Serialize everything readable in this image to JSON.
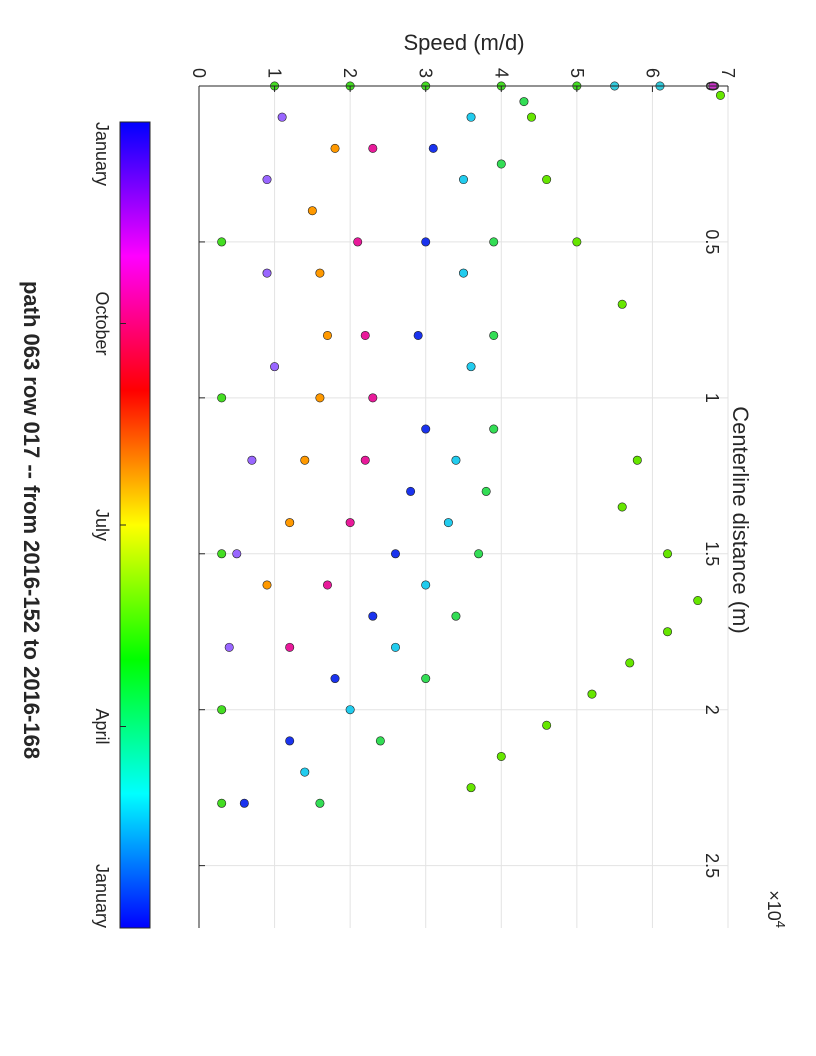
{
  "chart_data": {
    "type": "scatter",
    "title": "path 063 row 017  -- from 2016-152 to 2016-168",
    "xlabel": "Centerline distance (m)",
    "ylabel": "Speed (m/d)",
    "x_exponent_label": "×10",
    "x_exponent_power": "4",
    "xlim": [
      0,
      27000
    ],
    "ylim": [
      0,
      7
    ],
    "x_ticks": [
      0,
      5000,
      10000,
      15000,
      20000,
      25000
    ],
    "x_tick_labels": [
      "0",
      "0.5",
      "1",
      "1.5",
      "2",
      "2.5"
    ],
    "y_ticks": [
      0,
      1,
      2,
      3,
      4,
      5,
      6,
      7
    ],
    "y_tick_labels": [
      "0",
      "1",
      "2",
      "3",
      "4",
      "5",
      "6",
      "7"
    ],
    "grid": true,
    "colorbar": {
      "placement": "top",
      "tick_labels": [
        "January",
        "October",
        "July",
        "April",
        "January"
      ],
      "tick_fractions": [
        0,
        0.25,
        0.5,
        0.75,
        1
      ],
      "colors": [
        "#0000ff",
        "#ff00ff",
        "#ff0000",
        "#ffff00",
        "#00ff00",
        "#00ffff",
        "#0000ff"
      ]
    },
    "series": [
      {
        "color": "#66e600",
        "points": [
          [
            300,
            6.9
          ],
          [
            12000,
            5.8
          ],
          [
            13500,
            5.6
          ],
          [
            15000,
            6.2
          ],
          [
            16500,
            6.6
          ],
          [
            17500,
            6.2
          ],
          [
            18500,
            5.7
          ],
          [
            19500,
            5.2
          ],
          [
            20500,
            4.6
          ],
          [
            21500,
            4.0
          ],
          [
            22500,
            3.6
          ],
          [
            7000,
            5.6
          ],
          [
            5000,
            5.0
          ],
          [
            3000,
            4.6
          ],
          [
            1000,
            4.4
          ]
        ]
      },
      {
        "color": "#33dd55",
        "points": [
          [
            500,
            4.3
          ],
          [
            2500,
            4.0
          ],
          [
            5000,
            3.9
          ],
          [
            8000,
            3.9
          ],
          [
            11000,
            3.9
          ],
          [
            13000,
            3.8
          ],
          [
            15000,
            3.7
          ],
          [
            17000,
            3.4
          ],
          [
            19000,
            3.0
          ],
          [
            21000,
            2.4
          ],
          [
            23000,
            1.6
          ]
        ]
      },
      {
        "color": "#22ccee",
        "points": [
          [
            1000,
            3.6
          ],
          [
            3000,
            3.5
          ],
          [
            6000,
            3.5
          ],
          [
            9000,
            3.6
          ],
          [
            12000,
            3.4
          ],
          [
            14000,
            3.3
          ],
          [
            16000,
            3.0
          ],
          [
            18000,
            2.6
          ],
          [
            20000,
            2.0
          ],
          [
            22000,
            1.4
          ]
        ]
      },
      {
        "color": "#1a33ee",
        "points": [
          [
            2000,
            3.1
          ],
          [
            5000,
            3.0
          ],
          [
            8000,
            2.9
          ],
          [
            11000,
            3.0
          ],
          [
            13000,
            2.8
          ],
          [
            15000,
            2.6
          ],
          [
            17000,
            2.3
          ],
          [
            19000,
            1.8
          ],
          [
            21000,
            1.2
          ],
          [
            23000,
            0.6
          ]
        ]
      },
      {
        "color": "#e81a9a",
        "points": [
          [
            2000,
            2.3
          ],
          [
            5000,
            2.1
          ],
          [
            8000,
            2.2
          ],
          [
            10000,
            2.3
          ],
          [
            12000,
            2.2
          ],
          [
            14000,
            2.0
          ],
          [
            16000,
            1.7
          ],
          [
            18000,
            1.2
          ]
        ]
      },
      {
        "color": "#ff9900",
        "points": [
          [
            2000,
            1.8
          ],
          [
            4000,
            1.5
          ],
          [
            6000,
            1.6
          ],
          [
            8000,
            1.7
          ],
          [
            10000,
            1.6
          ],
          [
            12000,
            1.4
          ],
          [
            14000,
            1.2
          ],
          [
            16000,
            0.9
          ]
        ]
      },
      {
        "color": "#9966ff",
        "points": [
          [
            1000,
            1.1
          ],
          [
            3000,
            0.9
          ],
          [
            6000,
            0.9
          ],
          [
            9000,
            1.0
          ],
          [
            12000,
            0.7
          ],
          [
            15000,
            0.5
          ],
          [
            18000,
            0.4
          ]
        ]
      },
      {
        "color": "#44dd22",
        "points": [
          [
            0,
            5.0
          ],
          [
            0,
            4.0
          ],
          [
            0,
            3.0
          ],
          [
            0,
            2.0
          ],
          [
            0,
            1.0
          ],
          [
            5000,
            0.3
          ],
          [
            10000,
            0.3
          ],
          [
            15000,
            0.3
          ],
          [
            20000,
            0.3
          ],
          [
            23000,
            0.3
          ]
        ]
      },
      {
        "color": "#cc33cc",
        "points": [
          [
            0,
            6.8
          ]
        ]
      },
      {
        "color": "#33ccdd",
        "points": [
          [
            0,
            6.1
          ],
          [
            0,
            5.5
          ]
        ]
      }
    ]
  }
}
